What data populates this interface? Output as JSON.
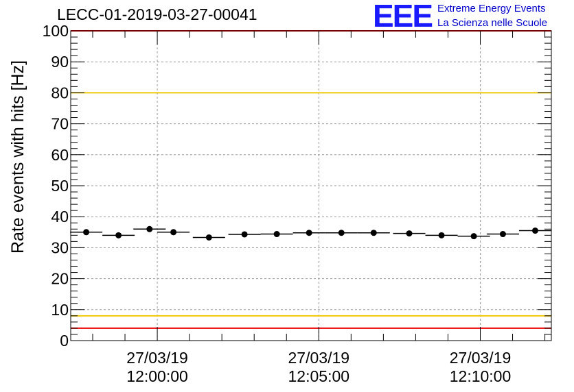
{
  "header": {
    "run_title": "LECC-01-2019-03-27-00041",
    "logo_mark": "EEE",
    "logo_line1": "Extreme Energy Events",
    "logo_line2": "La Scienza nelle Scuole"
  },
  "colors": {
    "marker": "#000000",
    "grid": "#999999",
    "threshold_high": "#f0c800",
    "threshold_low": "#f0c800",
    "limit": "#ee0000",
    "logo": "#1a1aff"
  },
  "chart_data": {
    "type": "scatter",
    "title": "LECC-01-2019-03-27-00041",
    "ylabel": "Rate events with hits [Hz]",
    "xlabel": "",
    "ylim": [
      0,
      100
    ],
    "yticks": [
      0,
      10,
      20,
      30,
      40,
      50,
      60,
      70,
      80,
      90,
      100
    ],
    "xlim_minutes": [
      -2.68,
      12.2
    ],
    "xticks": [
      {
        "minute": 0,
        "date": "27/03/19",
        "time": "12:00:00"
      },
      {
        "minute": 5,
        "date": "27/03/19",
        "time": "12:05:00"
      },
      {
        "minute": 10,
        "date": "27/03/19",
        "time": "12:10:00"
      }
    ],
    "grid": true,
    "bin_width_minutes": 1,
    "x_minutes": [
      -2.2,
      -1.2,
      -0.24,
      0.5,
      1.6,
      2.7,
      3.7,
      4.7,
      5.7,
      6.7,
      7.8,
      8.8,
      9.8,
      10.7,
      11.7
    ],
    "values": [
      35.0,
      34.0,
      36.0,
      35.0,
      33.3,
      34.3,
      34.4,
      34.8,
      34.8,
      34.8,
      34.6,
      34.0,
      33.7,
      34.4,
      35.5
    ],
    "reference_lines": [
      {
        "y": 80,
        "color": "#f0c800"
      },
      {
        "y": 8,
        "color": "#f0c800"
      },
      {
        "y": 4,
        "color": "#ee0000"
      },
      {
        "y": 100,
        "color": "#ee0000"
      }
    ]
  }
}
